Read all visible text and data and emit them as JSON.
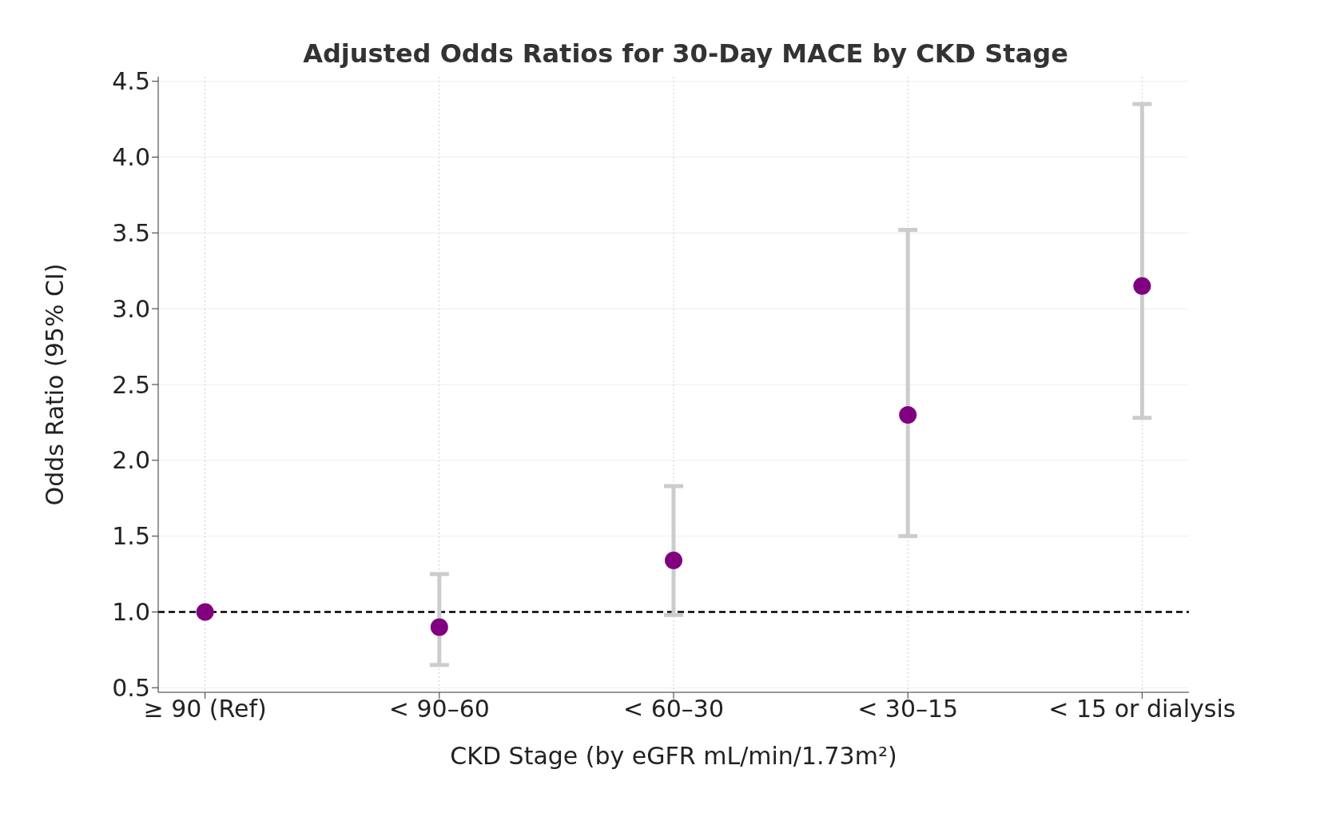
{
  "chart_data": {
    "type": "scatter",
    "title": "Adjusted Odds Ratios for 30-Day MACE by CKD Stage",
    "xlabel": "CKD Stage (by eGFR mL/min/1.73m²)",
    "ylabel": "Odds Ratio (95% CI)",
    "categories": [
      "≥ 90 (Ref)",
      "< 90–60",
      "< 60–30",
      "< 30–15",
      "< 15 or dialysis"
    ],
    "values": [
      1.0,
      0.9,
      1.34,
      2.3,
      3.15
    ],
    "errors": [
      null,
      [
        0.65,
        1.25
      ],
      [
        0.98,
        1.83
      ],
      [
        1.5,
        3.52
      ],
      [
        2.28,
        4.35
      ]
    ],
    "color": "#800080",
    "marker": "circle",
    "ylim": [
      0.47,
      4.53
    ],
    "yticks": [
      0.5,
      {
        "value": 1,
        "label": "1.0"
      },
      1.5,
      {
        "value": 2,
        "label": "2.0"
      },
      2.5,
      {
        "value": 3,
        "label": "3.0"
      },
      3.5,
      {
        "value": 4,
        "label": "4.0"
      },
      4.5
    ],
    "ref_lines": [
      {
        "axis": "y",
        "value": 1.0,
        "color": "#000000",
        "line_style": "dashed"
      }
    ],
    "grid": true
  }
}
